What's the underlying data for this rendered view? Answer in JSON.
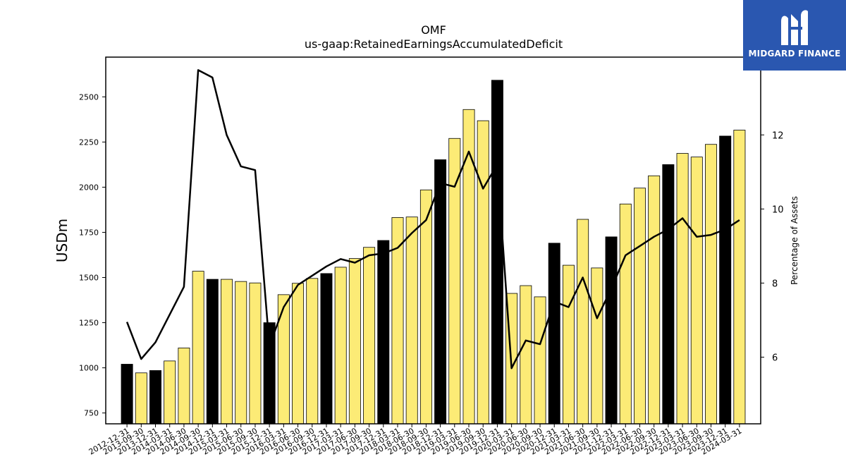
{
  "chart_data": {
    "type": "bar",
    "title": "OMF",
    "subtitle": "us-gaap:RetainedEarningsAccumulatedDeficit",
    "ylabel": "USDm",
    "y2label": "Percentage of Assets",
    "ylim": [
      690,
      2720
    ],
    "y2lim": [
      4.2,
      14.1
    ],
    "yticks": [
      750,
      1000,
      1250,
      1500,
      1750,
      2000,
      2250,
      2500
    ],
    "y2ticks": [
      6,
      8,
      10,
      12
    ],
    "categories": [
      "2012-12-31",
      "2013-09-30",
      "2013-12-31",
      "2014-03-31",
      "2014-06-30",
      "2014-09-30",
      "2014-12-31",
      "2015-03-31",
      "2015-06-30",
      "2015-09-30",
      "2015-12-31",
      "2016-03-31",
      "2016-06-30",
      "2016-09-30",
      "2016-12-31",
      "2017-03-31",
      "2017-06-30",
      "2017-09-30",
      "2017-12-31",
      "2018-03-31",
      "2018-06-30",
      "2018-09-30",
      "2018-12-31",
      "2019-03-31",
      "2019-06-30",
      "2019-09-30",
      "2019-12-31",
      "2020-03-31",
      "2020-06-30",
      "2020-09-30",
      "2020-12-31",
      "2021-03-31",
      "2021-06-30",
      "2021-09-30",
      "2021-12-31",
      "2022-03-31",
      "2022-06-30",
      "2022-09-30",
      "2022-12-31",
      "2023-03-31",
      "2023-06-30",
      "2023-09-30",
      "2023-12-31",
      "2024-03-31"
    ],
    "series": [
      {
        "type": "bar",
        "values": [
          1020,
          972,
          985,
          1038,
          1110,
          1535,
          1490,
          1490,
          1478,
          1470,
          1250,
          1405,
          1468,
          1495,
          1522,
          1557,
          1605,
          1667,
          1705,
          1832,
          1835,
          1985,
          2152,
          2270,
          2430,
          2368,
          2592,
          1412,
          1455,
          1393,
          1690,
          1568,
          1822,
          1553,
          1725,
          1907,
          1995,
          2063,
          2125,
          2187,
          2167,
          2237,
          2283,
          2316
        ]
      },
      {
        "type": "line",
        "axis": "right",
        "values": [
          6.95,
          5.95,
          6.4,
          7.15,
          7.9,
          13.75,
          13.55,
          12.0,
          11.15,
          11.05,
          6.3,
          7.35,
          7.95,
          8.2,
          8.45,
          8.65,
          8.55,
          8.75,
          8.8,
          8.95,
          9.35,
          9.7,
          10.7,
          10.6,
          11.55,
          10.55,
          11.2,
          5.7,
          6.45,
          6.35,
          7.5,
          7.35,
          8.15,
          7.05,
          7.85,
          8.75,
          9.0,
          9.25,
          9.45,
          9.75,
          9.25,
          9.3,
          9.45,
          9.7
        ]
      }
    ],
    "highlight_indices": [
      0,
      2,
      6,
      10,
      14,
      18,
      22,
      26,
      30,
      34,
      38,
      42
    ],
    "colors": {
      "bar": "#fceb76",
      "bar_highlight": "#000000",
      "line": "#000000"
    }
  },
  "logo": {
    "name": "MIDGARD FINANCE",
    "background": "#2a57b0"
  }
}
